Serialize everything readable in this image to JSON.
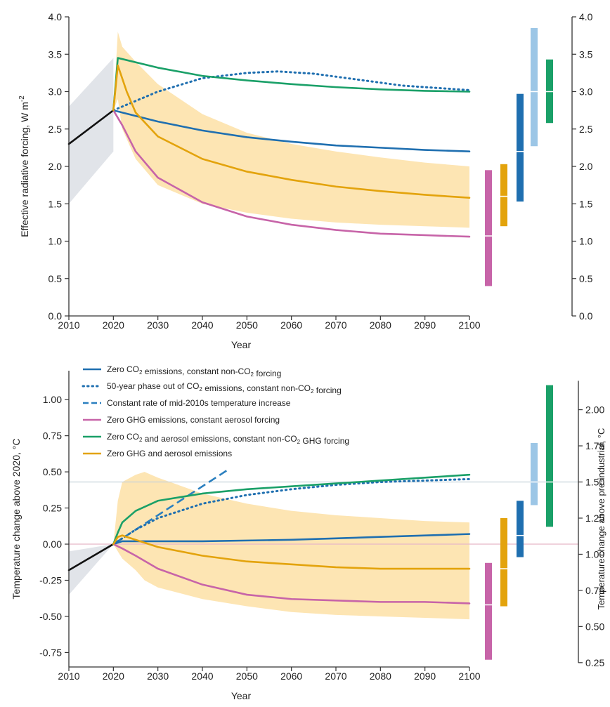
{
  "colors": {
    "zero_co2": "#1f6fb0",
    "phase_out": "#1f6fb0",
    "const_rate": "#2a7fbf",
    "zero_ghg": "#c764a8",
    "zero_co2_aerosol": "#1aa068",
    "zero_ghg_aerosol": "#e3a30c",
    "band": "#fde0a6",
    "history": "#111111",
    "history_band": "#d9dde3",
    "light_blue": "#9cc6e6"
  },
  "chart_data": [
    {
      "type": "line",
      "xlabel": "Year",
      "ylabel": "Effective radiative forcing, W m",
      "ylabel_sup": "-2",
      "xlim": [
        2010,
        2100
      ],
      "ylim": [
        0,
        4
      ],
      "x_ticks": [
        "2010",
        "2020",
        "2030",
        "2040",
        "2050",
        "2060",
        "2070",
        "2080",
        "2090",
        "2100"
      ],
      "y_ticks": [
        "0.0",
        "0.5",
        "1.0",
        "1.5",
        "2.0",
        "2.5",
        "3.0",
        "3.5",
        "4.0"
      ],
      "right_y_ticks": [
        "0.0",
        "0.5",
        "1.0",
        "1.5",
        "2.0",
        "2.5",
        "3.0",
        "3.5",
        "4.0"
      ],
      "grid": false,
      "x": [
        2010,
        2020,
        2021,
        2022,
        2025,
        2030,
        2040,
        2050,
        2060,
        2070,
        2080,
        2090,
        2100
      ],
      "series": [
        {
          "key": "history",
          "x": [
            2010,
            2020
          ],
          "values": [
            2.3,
            2.75
          ]
        },
        {
          "key": "zero_co2",
          "x": [
            2020,
            2030,
            2040,
            2050,
            2060,
            2070,
            2080,
            2090,
            2100
          ],
          "values": [
            2.75,
            2.6,
            2.48,
            2.39,
            2.33,
            2.28,
            2.25,
            2.22,
            2.2
          ]
        },
        {
          "key": "phase_out",
          "x": [
            2020,
            2030,
            2040,
            2050,
            2057,
            2065,
            2075,
            2085,
            2100
          ],
          "values": [
            2.75,
            3.0,
            3.18,
            3.25,
            3.27,
            3.24,
            3.16,
            3.08,
            3.02
          ]
        },
        {
          "key": "zero_ghg",
          "x": [
            2020,
            2022,
            2025,
            2030,
            2040,
            2050,
            2060,
            2070,
            2080,
            2090,
            2100
          ],
          "values": [
            2.75,
            2.55,
            2.2,
            1.85,
            1.52,
            1.33,
            1.22,
            1.15,
            1.1,
            1.08,
            1.06
          ]
        },
        {
          "key": "zero_co2_aerosol",
          "x": [
            2020,
            2021,
            2030,
            2040,
            2050,
            2060,
            2070,
            2080,
            2090,
            2100
          ],
          "values": [
            2.75,
            3.45,
            3.32,
            3.21,
            3.15,
            3.1,
            3.06,
            3.03,
            3.01,
            3.0
          ]
        },
        {
          "key": "zero_ghg_aerosol",
          "x": [
            2020,
            2021,
            2023,
            2025,
            2030,
            2040,
            2050,
            2060,
            2070,
            2080,
            2090,
            2100
          ],
          "values": [
            2.75,
            3.35,
            3.0,
            2.72,
            2.4,
            2.1,
            1.93,
            1.82,
            1.73,
            1.67,
            1.62,
            1.58
          ]
        }
      ],
      "band": {
        "x": [
          2020,
          2021,
          2022,
          2025,
          2030,
          2040,
          2050,
          2060,
          2070,
          2080,
          2090,
          2100
        ],
        "upper": [
          2.75,
          3.8,
          3.6,
          3.4,
          3.1,
          2.7,
          2.45,
          2.3,
          2.2,
          2.12,
          2.05,
          2.0
        ],
        "lower": [
          2.75,
          2.9,
          2.5,
          2.1,
          1.75,
          1.5,
          1.38,
          1.3,
          1.25,
          1.22,
          1.2,
          1.18
        ]
      },
      "history_band": {
        "x": [
          2010,
          2020
        ],
        "upper": [
          2.8,
          3.45
        ],
        "lower": [
          1.5,
          2.2
        ]
      },
      "range_bars": [
        {
          "key": "zero_ghg",
          "low": 0.4,
          "high": 1.95,
          "median": 1.07
        },
        {
          "key": "zero_ghg_aerosol",
          "low": 1.2,
          "high": 2.03,
          "median": 1.6
        },
        {
          "key": "zero_co2",
          "low": 1.53,
          "high": 2.97,
          "median": 2.2
        },
        {
          "key": "light_blue",
          "low": 2.27,
          "high": 3.85,
          "median": 3.0
        },
        {
          "key": "zero_co2_aerosol",
          "low": 2.58,
          "high": 3.43,
          "median": 3.0
        }
      ]
    },
    {
      "type": "line",
      "xlabel": "Year",
      "ylabel": "Temperature change above 2020, °C",
      "right_ylabel": "Temperature change above pre-industrial, °C",
      "xlim": [
        2010,
        2100
      ],
      "ylim": [
        -0.85,
        1.2
      ],
      "x_ticks": [
        "2010",
        "2020",
        "2030",
        "2040",
        "2050",
        "2060",
        "2070",
        "2080",
        "2090",
        "2100"
      ],
      "y_ticks": [
        "-0.75",
        "-0.50",
        "-0.25",
        "0.00",
        "0.25",
        "0.50",
        "0.75",
        "1.00"
      ],
      "right_y_ticks": [
        "0.25",
        "0.50",
        "0.75",
        "1.00",
        "1.25",
        "1.50",
        "1.75",
        "2.00"
      ],
      "right_offset": 1.07,
      "grid": false,
      "reference_lines": [
        0.0,
        0.43
      ],
      "legend": [
        {
          "key": "zero_co2",
          "style": "solid",
          "text_a": "Zero CO",
          "sub": "2",
          "text_b": " emissions, constant non-CO",
          "sub2": "2",
          "text_c": " forcing"
        },
        {
          "key": "phase_out",
          "style": "dotted",
          "text_a": "50-year phase out of CO",
          "sub": "2",
          "text_b": " emissions, constant non-CO",
          "sub2": "2",
          "text_c": " forcing"
        },
        {
          "key": "const_rate",
          "style": "dashed",
          "text_a": "Constant rate of mid-2010s temperature increase",
          "sub": "",
          "text_b": "",
          "sub2": "",
          "text_c": ""
        },
        {
          "key": "zero_ghg",
          "style": "solid",
          "text_a": "Zero GHG emissions, constant aerosol forcing",
          "sub": "",
          "text_b": "",
          "sub2": "",
          "text_c": ""
        },
        {
          "key": "zero_co2_aerosol",
          "style": "solid",
          "text_a": "Zero CO",
          "sub": "2",
          "text_b": " and aerosol emissions, constant non-CO",
          "sub2": "2",
          "text_c": " GHG forcing"
        },
        {
          "key": "zero_ghg_aerosol",
          "style": "solid",
          "text_a": "Zero GHG and aerosol emissions",
          "sub": "",
          "text_b": "",
          "sub2": "",
          "text_c": ""
        }
      ],
      "series": [
        {
          "key": "history",
          "x": [
            2010,
            2020
          ],
          "values": [
            -0.18,
            0.0
          ]
        },
        {
          "key": "const_rate",
          "x": [
            2020,
            2046
          ],
          "values": [
            0.0,
            0.52
          ]
        },
        {
          "key": "zero_co2",
          "x": [
            2020,
            2022,
            2030,
            2040,
            2050,
            2060,
            2070,
            2080,
            2090,
            2100
          ],
          "values": [
            0.0,
            0.02,
            0.02,
            0.02,
            0.025,
            0.03,
            0.04,
            0.05,
            0.06,
            0.07
          ]
        },
        {
          "key": "phase_out",
          "x": [
            2020,
            2025,
            2030,
            2040,
            2050,
            2060,
            2070,
            2080,
            2090,
            2100
          ],
          "values": [
            0.0,
            0.1,
            0.18,
            0.28,
            0.34,
            0.38,
            0.41,
            0.43,
            0.44,
            0.45
          ]
        },
        {
          "key": "zero_ghg",
          "x": [
            2020,
            2022,
            2025,
            2030,
            2040,
            2050,
            2060,
            2070,
            2080,
            2090,
            2100
          ],
          "values": [
            0.0,
            -0.03,
            -0.08,
            -0.17,
            -0.28,
            -0.35,
            -0.38,
            -0.39,
            -0.4,
            -0.4,
            -0.41
          ]
        },
        {
          "key": "zero_co2_aerosol",
          "x": [
            2020,
            2021,
            2022,
            2025,
            2030,
            2040,
            2050,
            2060,
            2070,
            2080,
            2090,
            2100
          ],
          "values": [
            0.0,
            0.08,
            0.15,
            0.23,
            0.3,
            0.35,
            0.38,
            0.4,
            0.42,
            0.44,
            0.46,
            0.48
          ]
        },
        {
          "key": "zero_ghg_aerosol",
          "x": [
            2020,
            2021,
            2022,
            2025,
            2030,
            2040,
            2050,
            2060,
            2070,
            2080,
            2090,
            2100
          ],
          "values": [
            0.0,
            0.05,
            0.06,
            0.03,
            -0.02,
            -0.08,
            -0.12,
            -0.14,
            -0.16,
            -0.17,
            -0.17,
            -0.17
          ]
        }
      ],
      "band": {
        "x": [
          2020,
          2021,
          2022,
          2025,
          2027,
          2030,
          2040,
          2050,
          2060,
          2070,
          2080,
          2090,
          2100
        ],
        "upper": [
          0.0,
          0.3,
          0.43,
          0.48,
          0.5,
          0.46,
          0.35,
          0.28,
          0.23,
          0.2,
          0.18,
          0.16,
          0.15
        ],
        "lower": [
          0.0,
          -0.05,
          -0.1,
          -0.18,
          -0.25,
          -0.3,
          -0.38,
          -0.43,
          -0.47,
          -0.49,
          -0.5,
          -0.51,
          -0.52
        ]
      },
      "history_band": {
        "x": [
          2010,
          2020
        ],
        "upper": [
          -0.05,
          0.0
        ],
        "lower": [
          -0.35,
          0.0
        ]
      },
      "range_bars": [
        {
          "key": "zero_ghg",
          "low": -0.8,
          "high": -0.13,
          "median": -0.42
        },
        {
          "key": "zero_ghg_aerosol",
          "low": -0.43,
          "high": 0.18,
          "median": -0.17
        },
        {
          "key": "zero_co2",
          "low": -0.09,
          "high": 0.3,
          "median": 0.06
        },
        {
          "key": "light_blue",
          "low": 0.27,
          "high": 0.7,
          "median": 0.43
        },
        {
          "key": "zero_co2_aerosol",
          "low": 0.12,
          "high": 1.1,
          "median": 0.43
        }
      ]
    }
  ]
}
